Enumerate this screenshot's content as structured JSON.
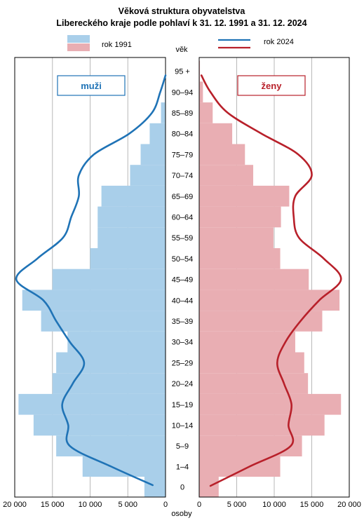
{
  "chart_data": {
    "type": "population-pyramid",
    "title_line1": "Věková struktura obyvatelstva",
    "title_line2": "Libereckého kraje podle pohlaví k 31. 12. 1991 a 31. 12. 2024",
    "age_axis_label": "věk",
    "x_axis_label": "osoby",
    "legend": {
      "bars_label": "rok 1991",
      "line_label": "rok 2024"
    },
    "panel_labels": {
      "men": "muži",
      "women": "ženy"
    },
    "xlim": [
      0,
      20000
    ],
    "x_ticks": [
      "20 000",
      "15 000",
      "10 000",
      "5 000",
      "0"
    ],
    "x_ticks_right": [
      "0",
      "5 000",
      "10 000",
      "15 000",
      "20 000"
    ],
    "age_groups": [
      "0",
      "1–4",
      "5–9",
      "10–14",
      "15–19",
      "20–24",
      "25–29",
      "30–34",
      "35–39",
      "40–44",
      "45–49",
      "50–54",
      "55–59",
      "60–64",
      "65–69",
      "70–74",
      "75–79",
      "80–84",
      "85–89",
      "90–94",
      "95 +"
    ],
    "bar_spans": [
      [
        0,
        1
      ],
      [
        1,
        5
      ],
      [
        5,
        10
      ],
      [
        10,
        15
      ],
      [
        15,
        20
      ],
      [
        20,
        25
      ],
      [
        25,
        30
      ],
      [
        30,
        35
      ],
      [
        35,
        40
      ],
      [
        40,
        45
      ],
      [
        45,
        50
      ],
      [
        50,
        55
      ],
      [
        55,
        60
      ],
      [
        60,
        65
      ],
      [
        65,
        70
      ],
      [
        70,
        75
      ],
      [
        75,
        80
      ],
      [
        80,
        85
      ],
      [
        85,
        90
      ],
      [
        90,
        95
      ],
      [
        95,
        100
      ]
    ],
    "men_1991": [
      2800,
      11000,
      14500,
      17500,
      19500,
      15000,
      14500,
      13000,
      16500,
      19000,
      15000,
      10000,
      9000,
      9000,
      8500,
      4700,
      3300,
      2100,
      600,
      100,
      0
    ],
    "women_1991": [
      2600,
      10800,
      13700,
      16700,
      18900,
      14500,
      14000,
      12800,
      16400,
      18700,
      14600,
      10800,
      9900,
      10900,
      12000,
      7200,
      6100,
      4400,
      1800,
      500,
      100
    ],
    "line_ages": [
      0,
      3,
      7.5,
      12.5,
      17.5,
      22.5,
      27.5,
      32.5,
      37.5,
      42.5,
      47.5,
      52.5,
      57.5,
      62.5,
      67.5,
      72.5,
      77.5,
      82.5,
      87.5,
      92.5,
      96.5
    ],
    "men_2024": [
      1700,
      7200,
      12700,
      12900,
      13700,
      12300,
      10800,
      12700,
      14500,
      16200,
      19800,
      17000,
      13600,
      12500,
      11500,
      11500,
      9500,
      4800,
      1800,
      700,
      0
    ],
    "women_2024": [
      1500,
      6700,
      12200,
      11900,
      12300,
      11300,
      10400,
      11500,
      13500,
      16000,
      18900,
      16600,
      13300,
      12600,
      12800,
      15000,
      13200,
      8300,
      3800,
      1500,
      300
    ],
    "colors": {
      "men_bar": "#a9cfea",
      "women_bar": "#e9aeb3",
      "men_line": "#1f73b6",
      "women_line": "#b8202a",
      "grid": "#b8b8b8"
    }
  }
}
